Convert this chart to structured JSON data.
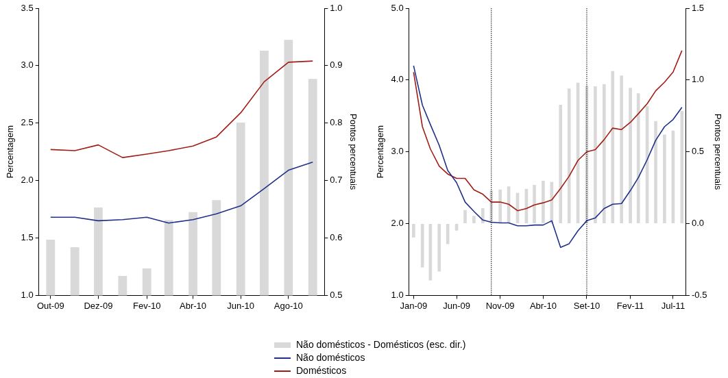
{
  "chart_data": [
    {
      "type": "line",
      "x": [
        "2009-10",
        "2009-11",
        "2009-12",
        "2010-01",
        "2010-02",
        "2010-03",
        "2010-04",
        "2010-05",
        "2010-06",
        "2010-07",
        "2010-08",
        "2010-09"
      ],
      "xlim": [
        "2009-09-16",
        "2010-09-16"
      ],
      "xticks": [
        {
          "value": "2009-10",
          "label": "Out-09"
        },
        {
          "value": "2009-12",
          "label": "Dez-09"
        },
        {
          "value": "2010-02",
          "label": "Fev-10"
        },
        {
          "value": "2010-04",
          "label": "Abr-10"
        },
        {
          "value": "2010-06",
          "label": "Jun-10"
        },
        {
          "value": "2010-08",
          "label": "Ago-10"
        }
      ],
      "ylabel": "Percentagem",
      "y2label": "Pontos percentuais",
      "ylim": [
        1.0,
        3.5
      ],
      "yticks": [
        {
          "value": 1,
          "label": "1.0"
        },
        {
          "value": 1.5,
          "label": "1.5"
        },
        {
          "value": 2,
          "label": "2.0"
        },
        {
          "value": 2.5,
          "label": "2.5"
        },
        {
          "value": 3,
          "label": "3.0"
        },
        {
          "value": 3.5,
          "label": "3.5"
        }
      ],
      "y2lim": [
        0.5,
        1.0
      ],
      "y2ticks": [
        {
          "value": 0.5,
          "label": "0.5"
        },
        {
          "value": 0.6,
          "label": "0.6"
        },
        {
          "value": 0.7,
          "label": "0.7"
        },
        {
          "value": 0.8,
          "label": "0.8"
        },
        {
          "value": 0.9,
          "label": "0.9"
        },
        {
          "value": 1,
          "label": "1.0"
        }
      ],
      "legend": "bottom",
      "series": [
        {
          "type": "bar",
          "axis": "y2",
          "name": "Não domésticos - Domésticos (esc. dir.)",
          "color": "#d9d9d9",
          "values": [
            0.597,
            0.584,
            0.653,
            0.534,
            0.547,
            0.631,
            0.645,
            0.666,
            0.801,
            0.926,
            0.945,
            0.877
          ]
        },
        {
          "name": "Não domésticos",
          "color": "#1f2f8a",
          "values": [
            1.68,
            1.68,
            1.65,
            1.66,
            1.68,
            1.63,
            1.66,
            1.71,
            1.78,
            1.93,
            2.09,
            2.16
          ]
        },
        {
          "name": "Domésticos",
          "color": "#a01c14",
          "values": [
            2.27,
            2.26,
            2.31,
            2.2,
            2.23,
            2.26,
            2.3,
            2.38,
            2.59,
            2.86,
            3.03,
            3.04
          ]
        }
      ]
    },
    {
      "type": "line",
      "x": [
        "2009-01",
        "2009-02",
        "2009-03",
        "2009-04",
        "2009-05",
        "2009-06",
        "2009-07",
        "2009-08",
        "2009-09",
        "2009-10",
        "2009-11",
        "2009-12",
        "2010-01",
        "2010-02",
        "2010-03",
        "2010-04",
        "2010-05",
        "2010-06",
        "2010-07",
        "2010-08",
        "2010-09",
        "2010-10",
        "2010-11",
        "2010-12",
        "2011-01",
        "2011-02",
        "2011-03",
        "2011-04",
        "2011-05",
        "2011-06",
        "2011-07",
        "2011-08"
      ],
      "xlim": [
        "2008-12-16",
        "2011-08-16"
      ],
      "xticks": [
        {
          "value": "2009-01",
          "label": "Jan-09"
        },
        {
          "value": "2009-06",
          "label": "Jun-09"
        },
        {
          "value": "2009-11",
          "label": "Nov-09"
        },
        {
          "value": "2010-04",
          "label": "Abr-10"
        },
        {
          "value": "2010-09",
          "label": "Set-10"
        },
        {
          "value": "2011-02",
          "label": "Fev-11"
        },
        {
          "value": "2011-07",
          "label": "Jul-11"
        }
      ],
      "ylabel": "Percentagem",
      "y2label": "Pontos percentuais",
      "ylim": [
        1.0,
        5.0
      ],
      "yticks": [
        {
          "value": 1,
          "label": "1.0"
        },
        {
          "value": 2,
          "label": "2.0"
        },
        {
          "value": 3,
          "label": "3.0"
        },
        {
          "value": 4,
          "label": "4.0"
        },
        {
          "value": 5,
          "label": "5.0"
        }
      ],
      "y2lim": [
        -0.5,
        1.5
      ],
      "y2ticks": [
        {
          "value": -0.5,
          "label": "-0.5"
        },
        {
          "value": 0,
          "label": "0.0"
        },
        {
          "value": 0.5,
          "label": "0.5"
        },
        {
          "value": 1,
          "label": "1.0"
        },
        {
          "value": 1.5,
          "label": "1.5"
        }
      ],
      "ref_lines": [
        {
          "axis": "x",
          "value": "2009-10",
          "line_style": "dotted",
          "color": "#000000"
        },
        {
          "axis": "x",
          "value": "2010-09",
          "line_style": "dotted",
          "color": "#000000"
        }
      ],
      "legend": "bottom",
      "series": [
        {
          "type": "bar",
          "axis": "y2",
          "name": "Não domésticos - Domésticos (esc. dir.)",
          "color": "#d9d9d9",
          "values": [
            -0.096,
            -0.305,
            -0.396,
            -0.333,
            -0.143,
            -0.049,
            0.094,
            0.054,
            0.107,
            0.23,
            0.237,
            0.259,
            0.214,
            0.242,
            0.27,
            0.298,
            0.29,
            0.828,
            0.941,
            0.981,
            0.96,
            0.956,
            0.971,
            1.063,
            1.031,
            0.946,
            0.908,
            0.818,
            0.714,
            0.62,
            0.648,
            0.785
          ]
        },
        {
          "name": "Não domésticos",
          "color": "#1f2f8a",
          "values": [
            4.2,
            3.65,
            3.38,
            3.09,
            2.74,
            2.57,
            2.3,
            2.17,
            2.05,
            2.02,
            2.01,
            2.01,
            1.97,
            1.97,
            1.98,
            1.98,
            2.04,
            1.67,
            1.72,
            1.9,
            2.04,
            2.08,
            2.21,
            2.27,
            2.28,
            2.46,
            2.64,
            2.89,
            3.16,
            3.35,
            3.45,
            3.62
          ]
        },
        {
          "name": "Domésticos",
          "color": "#a01c14",
          "values": [
            4.11,
            3.35,
            3.04,
            2.8,
            2.69,
            2.63,
            2.63,
            2.47,
            2.41,
            2.3,
            2.3,
            2.27,
            2.18,
            2.21,
            2.26,
            2.29,
            2.33,
            2.49,
            2.66,
            2.88,
            3.0,
            3.03,
            3.17,
            3.33,
            3.31,
            3.41,
            3.53,
            3.67,
            3.85,
            3.97,
            4.11,
            4.41
          ]
        }
      ]
    }
  ]
}
